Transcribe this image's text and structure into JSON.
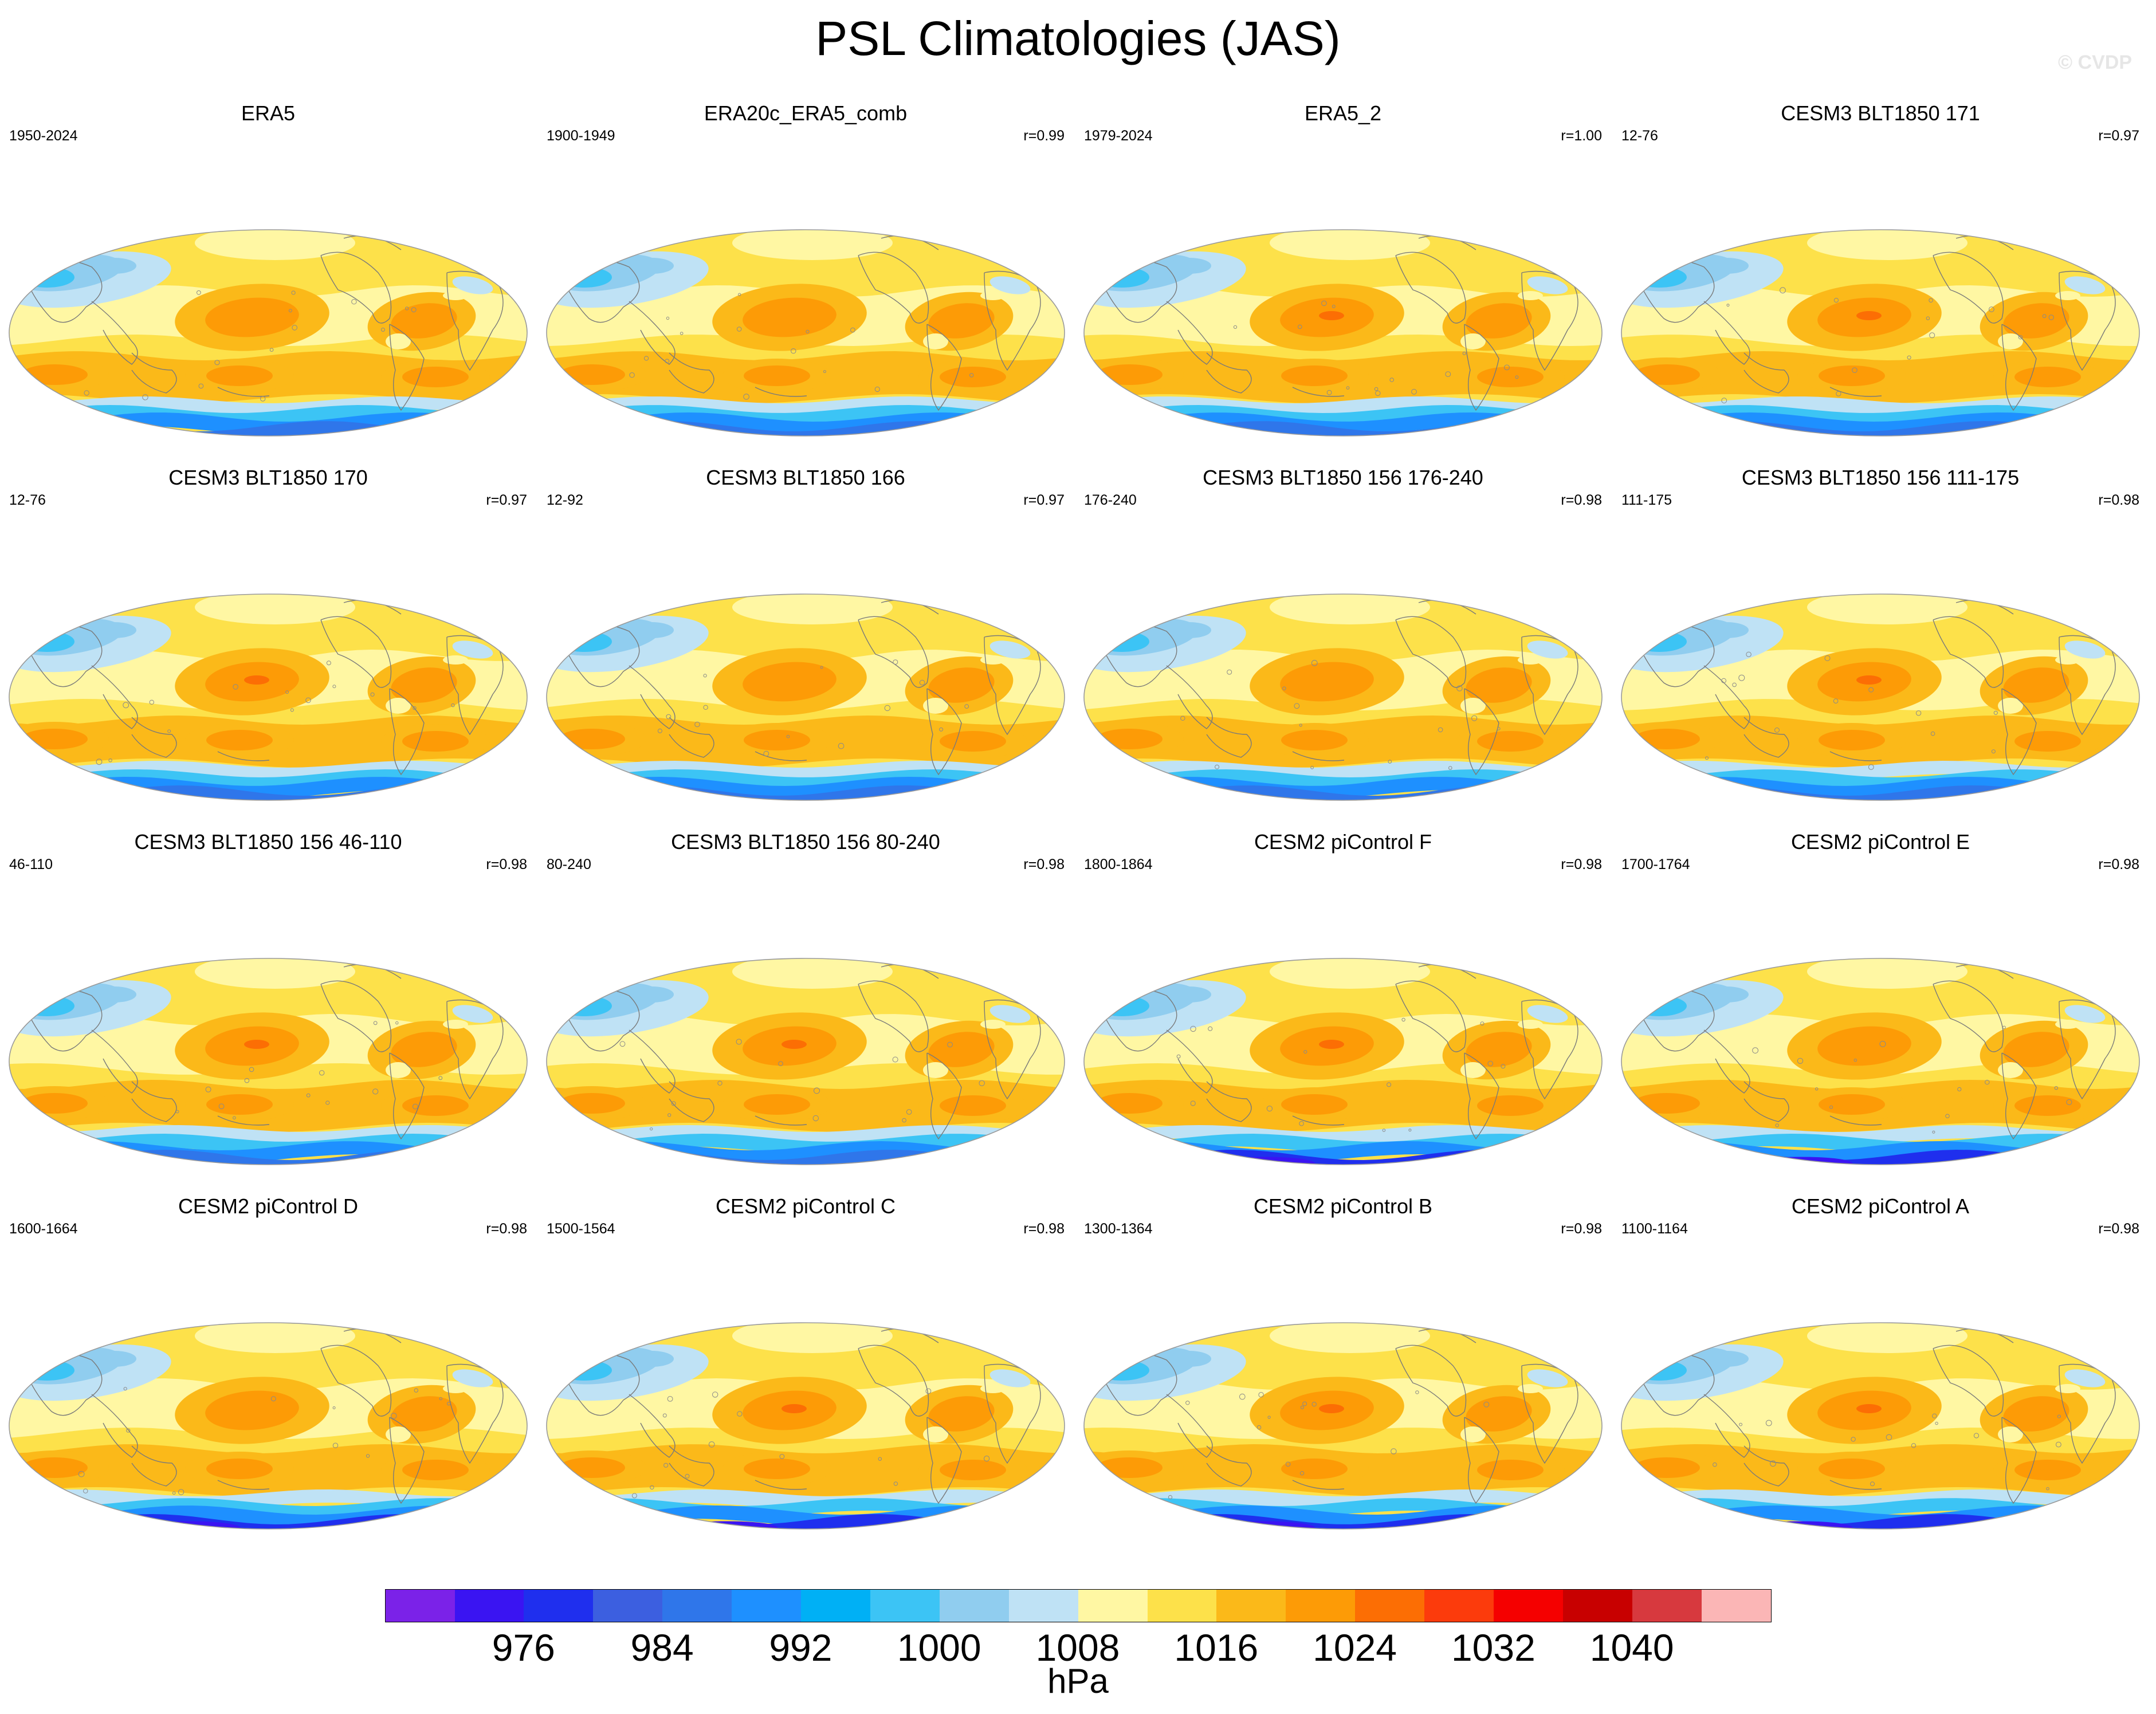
{
  "title": "PSL Climatologies (JAS)",
  "watermark": "© CVDP",
  "chart_data": {
    "type": "heatmap",
    "title": "PSL Climatologies (JAS)",
    "projection": "Robinson global map",
    "colorbar": {
      "units": "hPa",
      "tick_labels": [
        "976",
        "984",
        "992",
        "1000",
        "1008",
        "1016",
        "1024",
        "1032",
        "1040"
      ],
      "levels": [
        972,
        976,
        980,
        984,
        988,
        992,
        996,
        1000,
        1004,
        1008,
        1012,
        1016,
        1020,
        1024,
        1028,
        1032,
        1036,
        1040
      ],
      "colors": [
        "#7b22e8",
        "#3a14f2",
        "#1f2fee",
        "#3c5fe0",
        "#2f76ea",
        "#1e90ff",
        "#00b0f5",
        "#3cc4f5",
        "#90cdef",
        "#bfe2f5",
        "#fff7a3",
        "#fde14a",
        "#fbb919",
        "#fd9b06",
        "#fc6e04",
        "#fc3b0c",
        "#f50000",
        "#c80000",
        "#d7393e",
        "#fbb6b6"
      ]
    },
    "panels": [
      {
        "name": "ERA5",
        "period": "1950-2024",
        "r": ""
      },
      {
        "name": "ERA20c_ERA5_comb",
        "period": "1900-1949",
        "r": "r=0.99"
      },
      {
        "name": "ERA5_2",
        "period": "1979-2024",
        "r": "r=1.00"
      },
      {
        "name": "CESM3 BLT1850 171",
        "period": "12-76",
        "r": "r=0.97"
      },
      {
        "name": "CESM3 BLT1850 170",
        "period": "12-76",
        "r": "r=0.97"
      },
      {
        "name": "CESM3 BLT1850 166",
        "period": "12-92",
        "r": "r=0.97"
      },
      {
        "name": "CESM3 BLT1850 156 176-240",
        "period": "176-240",
        "r": "r=0.98"
      },
      {
        "name": "CESM3 BLT1850 156 111-175",
        "period": "111-175",
        "r": "r=0.98"
      },
      {
        "name": "CESM3 BLT1850 156 46-110",
        "period": "46-110",
        "r": "r=0.98"
      },
      {
        "name": "CESM3 BLT1850 156 80-240",
        "period": "80-240",
        "r": "r=0.98"
      },
      {
        "name": "CESM2 piControl F",
        "period": "1800-1864",
        "r": "r=0.98"
      },
      {
        "name": "CESM2 piControl E",
        "period": "1700-1764",
        "r": "r=0.98"
      },
      {
        "name": "CESM2 piControl D",
        "period": "1600-1664",
        "r": "r=0.98"
      },
      {
        "name": "CESM2 piControl C",
        "period": "1500-1564",
        "r": "r=0.98"
      },
      {
        "name": "CESM2 piControl B",
        "period": "1300-1364",
        "r": "r=0.98"
      },
      {
        "name": "CESM2 piControl A",
        "period": "1100-1164",
        "r": "r=0.98"
      }
    ]
  }
}
